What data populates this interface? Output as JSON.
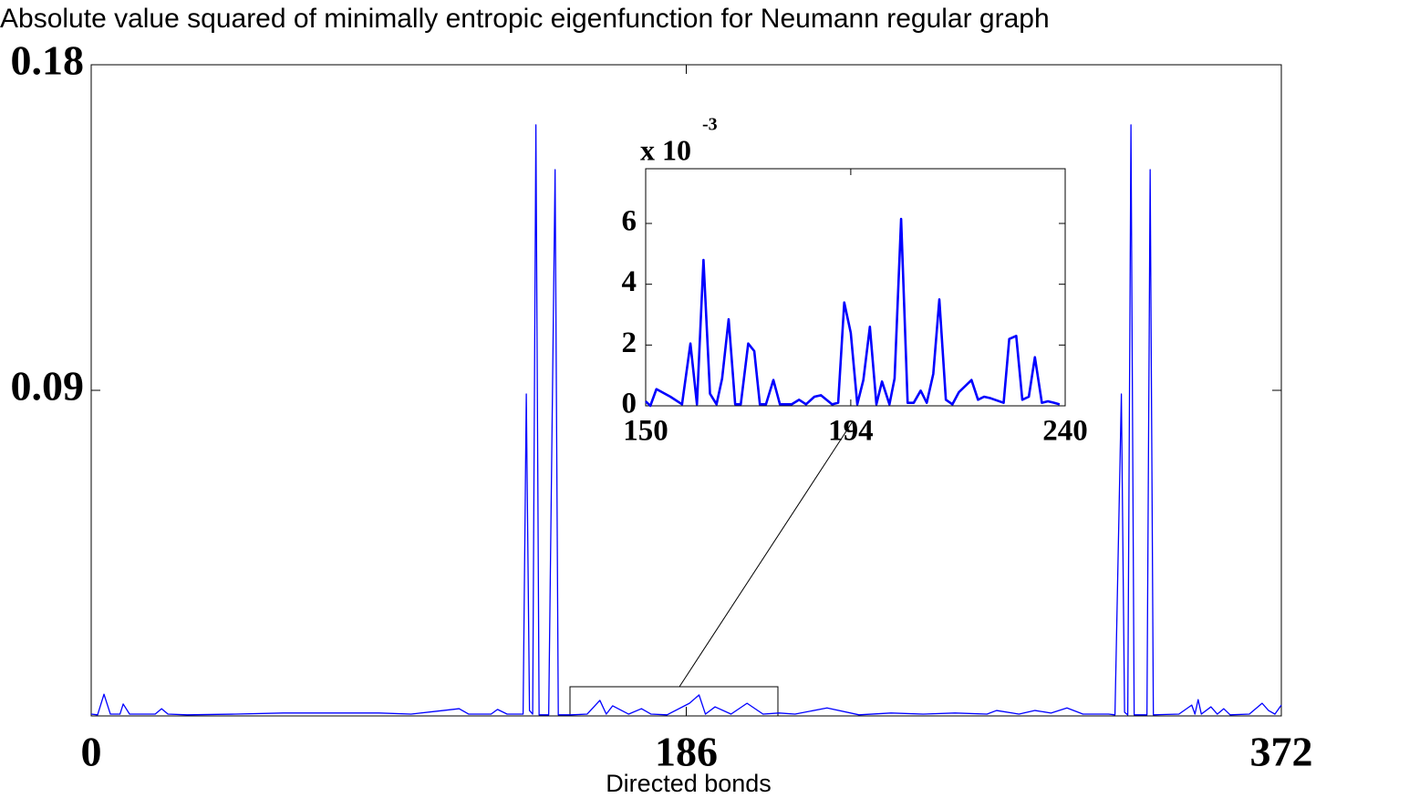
{
  "chart_data": [
    {
      "type": "line",
      "title": "Absolute value squared of minimally entropic eigenfunction for Neumann regular graph",
      "x_label": "Directed bonds",
      "xlim": [
        0,
        372
      ],
      "xticks": [
        0,
        186,
        372
      ],
      "ylim": [
        0,
        0.18
      ],
      "yticks": [
        0.09,
        0.18
      ],
      "series": [
        {
          "color": "#0000ff",
          "x": [
            0,
            2,
            4,
            6,
            9,
            10,
            12,
            20,
            22,
            24,
            30,
            45,
            60,
            75,
            90,
            100,
            110,
            115,
            118,
            125,
            127,
            130,
            134,
            135,
            136,
            137,
            138,
            139,
            140,
            143,
            145,
            146,
            150,
            155,
            159,
            161,
            163,
            168,
            172,
            175,
            180,
            187,
            190,
            192,
            195,
            200,
            205,
            210,
            215,
            220,
            230,
            240,
            250,
            260,
            270,
            280,
            283,
            290,
            295,
            300,
            305,
            310,
            318,
            320,
            322,
            323,
            324,
            325,
            326,
            330,
            331,
            332,
            340,
            344,
            345,
            346,
            347,
            350,
            352,
            354,
            356,
            362,
            366,
            368,
            370,
            372
          ],
          "values": [
            0.0005,
            0.0003,
            0.006,
            0.0005,
            0.0005,
            0.0033,
            0.0005,
            0.0005,
            0.002,
            0.0005,
            0.0003,
            0.0005,
            0.0008,
            0.0008,
            0.0008,
            0.0005,
            0.0015,
            0.002,
            0.0005,
            0.0005,
            0.0018,
            0.0005,
            0.0005,
            0.0005,
            0.089,
            0.0015,
            0.0005,
            0.1634,
            0.0003,
            0.0003,
            0.151,
            0.0003,
            0.0003,
            0.0005,
            0.0043,
            0.0005,
            0.0028,
            0.0005,
            0.002,
            0.0005,
            0.0003,
            0.0035,
            0.0058,
            0.0005,
            0.0025,
            0.0005,
            0.0035,
            0.0005,
            0.0008,
            0.0005,
            0.0022,
            0.0003,
            0.0008,
            0.0005,
            0.0008,
            0.0005,
            0.0015,
            0.0005,
            0.0015,
            0.0008,
            0.0022,
            0.0005,
            0.0005,
            0.0003,
            0.089,
            0.001,
            0.0003,
            0.1634,
            0.0003,
            0.0003,
            0.151,
            0.0003,
            0.0005,
            0.003,
            0.0005,
            0.0045,
            0.0005,
            0.0025,
            0.0005,
            0.002,
            0.0003,
            0.0005,
            0.0035,
            0.0015,
            0.0005,
            0.003
          ]
        }
      ]
    },
    {
      "type": "line",
      "exponent_label": "x 10",
      "exponent_power": "-3",
      "xlim": [
        150,
        240
      ],
      "xticks": [
        150,
        194,
        240
      ],
      "ylim": [
        0,
        7.8
      ],
      "yticks": [
        0,
        2,
        4,
        6
      ],
      "series": [
        {
          "color": "#0000ff",
          "x": [
            150,
            151,
            152.3,
            155.3,
            157.8,
            159.6,
            161,
            162.4,
            163.8,
            165.2,
            166.4,
            167.8,
            169.2,
            170.4,
            172,
            173.3,
            174.5,
            175.8,
            177.4,
            178.8,
            181.3,
            182.9,
            184.4,
            186.2,
            187.6,
            190,
            191.3,
            192.6,
            194,
            195.4,
            196.7,
            198.1,
            199.5,
            200.7,
            202.3,
            203.4,
            204.8,
            206.2,
            207.5,
            209,
            210.3,
            211.7,
            213,
            214.4,
            215.8,
            217.2,
            219.9,
            221.3,
            222.6,
            224,
            226.8,
            228,
            229.5,
            230.8,
            232.2,
            233.5,
            235,
            236.3,
            237.6,
            238.8
          ],
          "values": [
            0.15,
            0,
            0.55,
            0.3,
            0.05,
            2.05,
            0.05,
            4.8,
            0.4,
            0.05,
            0.9,
            2.85,
            0.05,
            0.05,
            2.05,
            1.8,
            0.05,
            0.05,
            0.85,
            0.05,
            0.05,
            0.2,
            0.05,
            0.3,
            0.35,
            0.05,
            0.1,
            3.4,
            2.4,
            0.05,
            0.85,
            2.6,
            0.05,
            0.8,
            0.05,
            0.9,
            6.15,
            0.1,
            0.1,
            0.5,
            0.1,
            1.05,
            3.5,
            0.2,
            0.05,
            0.45,
            0.85,
            0.2,
            0.3,
            0.25,
            0.1,
            2.2,
            2.3,
            0.2,
            0.3,
            1.6,
            0.1,
            0.15,
            0.1,
            0.05
          ]
        }
      ]
    }
  ]
}
